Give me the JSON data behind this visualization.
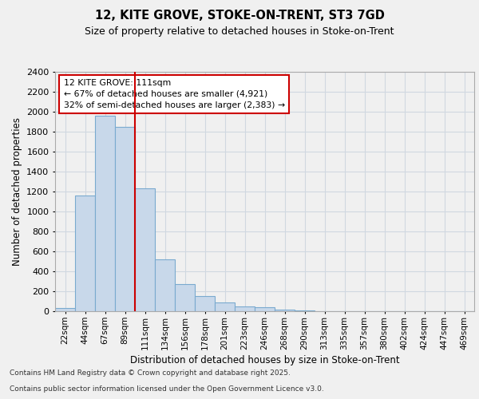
{
  "title1": "12, KITE GROVE, STOKE-ON-TRENT, ST3 7GD",
  "title2": "Size of property relative to detached houses in Stoke-on-Trent",
  "xlabel": "Distribution of detached houses by size in Stoke-on-Trent",
  "ylabel": "Number of detached properties",
  "footnote1": "Contains HM Land Registry data © Crown copyright and database right 2025.",
  "footnote2": "Contains public sector information licensed under the Open Government Licence v3.0.",
  "bin_labels": [
    "22sqm",
    "44sqm",
    "67sqm",
    "89sqm",
    "111sqm",
    "134sqm",
    "156sqm",
    "178sqm",
    "201sqm",
    "223sqm",
    "246sqm",
    "268sqm",
    "290sqm",
    "313sqm",
    "335sqm",
    "357sqm",
    "380sqm",
    "402sqm",
    "424sqm",
    "447sqm",
    "469sqm"
  ],
  "values": [
    30,
    1160,
    1960,
    1850,
    1230,
    520,
    270,
    155,
    90,
    50,
    40,
    20,
    5,
    2,
    2,
    1,
    1,
    0,
    0,
    0,
    0
  ],
  "property_size_idx": 4,
  "vline_x": 3.5,
  "annotation_line1": "12 KITE GROVE: 111sqm",
  "annotation_line2": "← 67% of detached houses are smaller (4,921)",
  "annotation_line3": "32% of semi-detached houses are larger (2,383) →",
  "bar_color": "#c8d8ea",
  "bar_edge_color": "#7aaacf",
  "vline_color": "#cc0000",
  "annotation_box_edgecolor": "#cc0000",
  "background_color": "#f0f0f0",
  "plot_bg_color": "#f0f0f0",
  "grid_color": "#d0d8e0",
  "ylim": [
    0,
    2400
  ],
  "yticks": [
    0,
    200,
    400,
    600,
    800,
    1000,
    1200,
    1400,
    1600,
    1800,
    2000,
    2200,
    2400
  ]
}
